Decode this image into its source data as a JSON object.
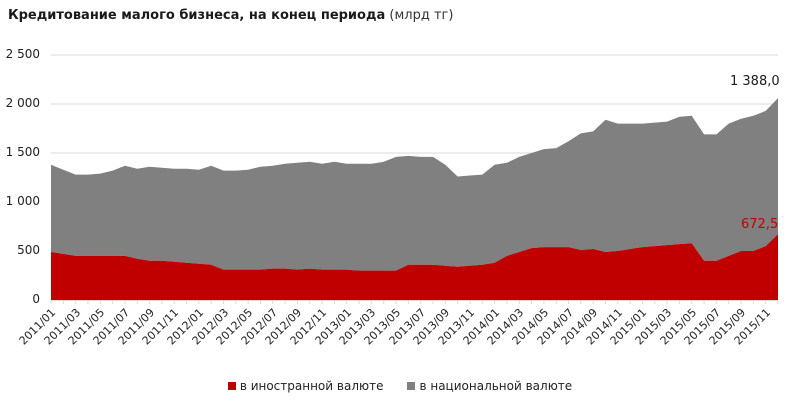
{
  "title": {
    "main": "Кредитование  малого бизнеса, на конец  периода",
    "unit": "(млрд тг)"
  },
  "colors": {
    "foreign": "#c00000",
    "national": "#808080",
    "grid": "#d9d9d9"
  },
  "legend": [
    {
      "label": "в иностранной валюте",
      "color": "#c00000"
    },
    {
      "label": "в национальной валюте",
      "color": "#808080"
    }
  ],
  "annotations": {
    "national_last": "1 388,0",
    "foreign_last": "672,5"
  },
  "chart_data": {
    "type": "area",
    "stacked": true,
    "title": "Кредитование малого бизнеса, на конец периода (млрд тг)",
    "xlabel": "",
    "ylabel": "",
    "ylim": [
      0,
      2500
    ],
    "yticks": [
      0,
      500,
      1000,
      1500,
      2000,
      2500
    ],
    "ytick_labels": [
      "0",
      "500",
      "1 000",
      "1 500",
      "2 000",
      "2 500"
    ],
    "grid": true,
    "legend_position": "bottom",
    "x": [
      "2011/01",
      "2011/02",
      "2011/03",
      "2011/04",
      "2011/05",
      "2011/06",
      "2011/07",
      "2011/08",
      "2011/09",
      "2011/10",
      "2011/11",
      "2011/12",
      "2012/01",
      "2012/02",
      "2012/03",
      "2012/04",
      "2012/05",
      "2012/06",
      "2012/07",
      "2012/08",
      "2012/09",
      "2012/10",
      "2012/11",
      "2012/12",
      "2013/01",
      "2013/02",
      "2013/03",
      "2013/04",
      "2013/05",
      "2013/06",
      "2013/07",
      "2013/08",
      "2013/09",
      "2013/10",
      "2013/11",
      "2013/12",
      "2014/01",
      "2014/02",
      "2014/03",
      "2014/04",
      "2014/05",
      "2014/06",
      "2014/07",
      "2014/08",
      "2014/09",
      "2014/10",
      "2014/11",
      "2014/12",
      "2015/01",
      "2015/02",
      "2015/03",
      "2015/04",
      "2015/05",
      "2015/06",
      "2015/07",
      "2015/08",
      "2015/09",
      "2015/10",
      "2015/11",
      "2015/12"
    ],
    "xtick_labels": [
      "2011/01",
      "2011/03",
      "2011/05",
      "2011/07",
      "2011/09",
      "2011/11",
      "2012/01",
      "2012/03",
      "2012/05",
      "2012/07",
      "2012/09",
      "2012/11",
      "2013/01",
      "2013/03",
      "2013/05",
      "2013/07",
      "2013/09",
      "2013/11",
      "2014/01",
      "2014/03",
      "2014/05",
      "2014/07",
      "2014/09",
      "2014/11",
      "2015/01",
      "2015/03",
      "2015/05",
      "2015/07",
      "2015/09",
      "2015/11"
    ],
    "series": [
      {
        "name": "в иностранной валюте",
        "values": [
          490,
          470,
          450,
          450,
          450,
          450,
          450,
          420,
          400,
          400,
          390,
          380,
          370,
          360,
          310,
          310,
          310,
          310,
          320,
          320,
          310,
          320,
          310,
          310,
          310,
          300,
          300,
          300,
          300,
          360,
          360,
          360,
          350,
          340,
          350,
          360,
          380,
          450,
          490,
          530,
          540,
          540,
          540,
          510,
          520,
          490,
          500,
          520,
          540,
          550,
          560,
          570,
          580,
          400,
          400,
          450,
          500,
          500,
          550,
          672.5
        ]
      },
      {
        "name": "в национальной валюте",
        "values": [
          890,
          860,
          830,
          830,
          840,
          870,
          920,
          920,
          960,
          950,
          950,
          960,
          960,
          1010,
          1010,
          1010,
          1020,
          1050,
          1050,
          1070,
          1090,
          1090,
          1080,
          1100,
          1080,
          1090,
          1090,
          1110,
          1160,
          1110,
          1100,
          1100,
          1030,
          920,
          920,
          920,
          1000,
          950,
          970,
          970,
          1000,
          1010,
          1080,
          1190,
          1200,
          1350,
          1300,
          1280,
          1260,
          1260,
          1260,
          1300,
          1300,
          1290,
          1290,
          1350,
          1350,
          1380,
          1380,
          1388.0
        ]
      }
    ],
    "data_labels": [
      {
        "series": "в национальной валюте",
        "x": "2015/12",
        "text": "1 388,0"
      },
      {
        "series": "в иностранной валюте",
        "x": "2015/12",
        "text": "672,5"
      }
    ]
  }
}
